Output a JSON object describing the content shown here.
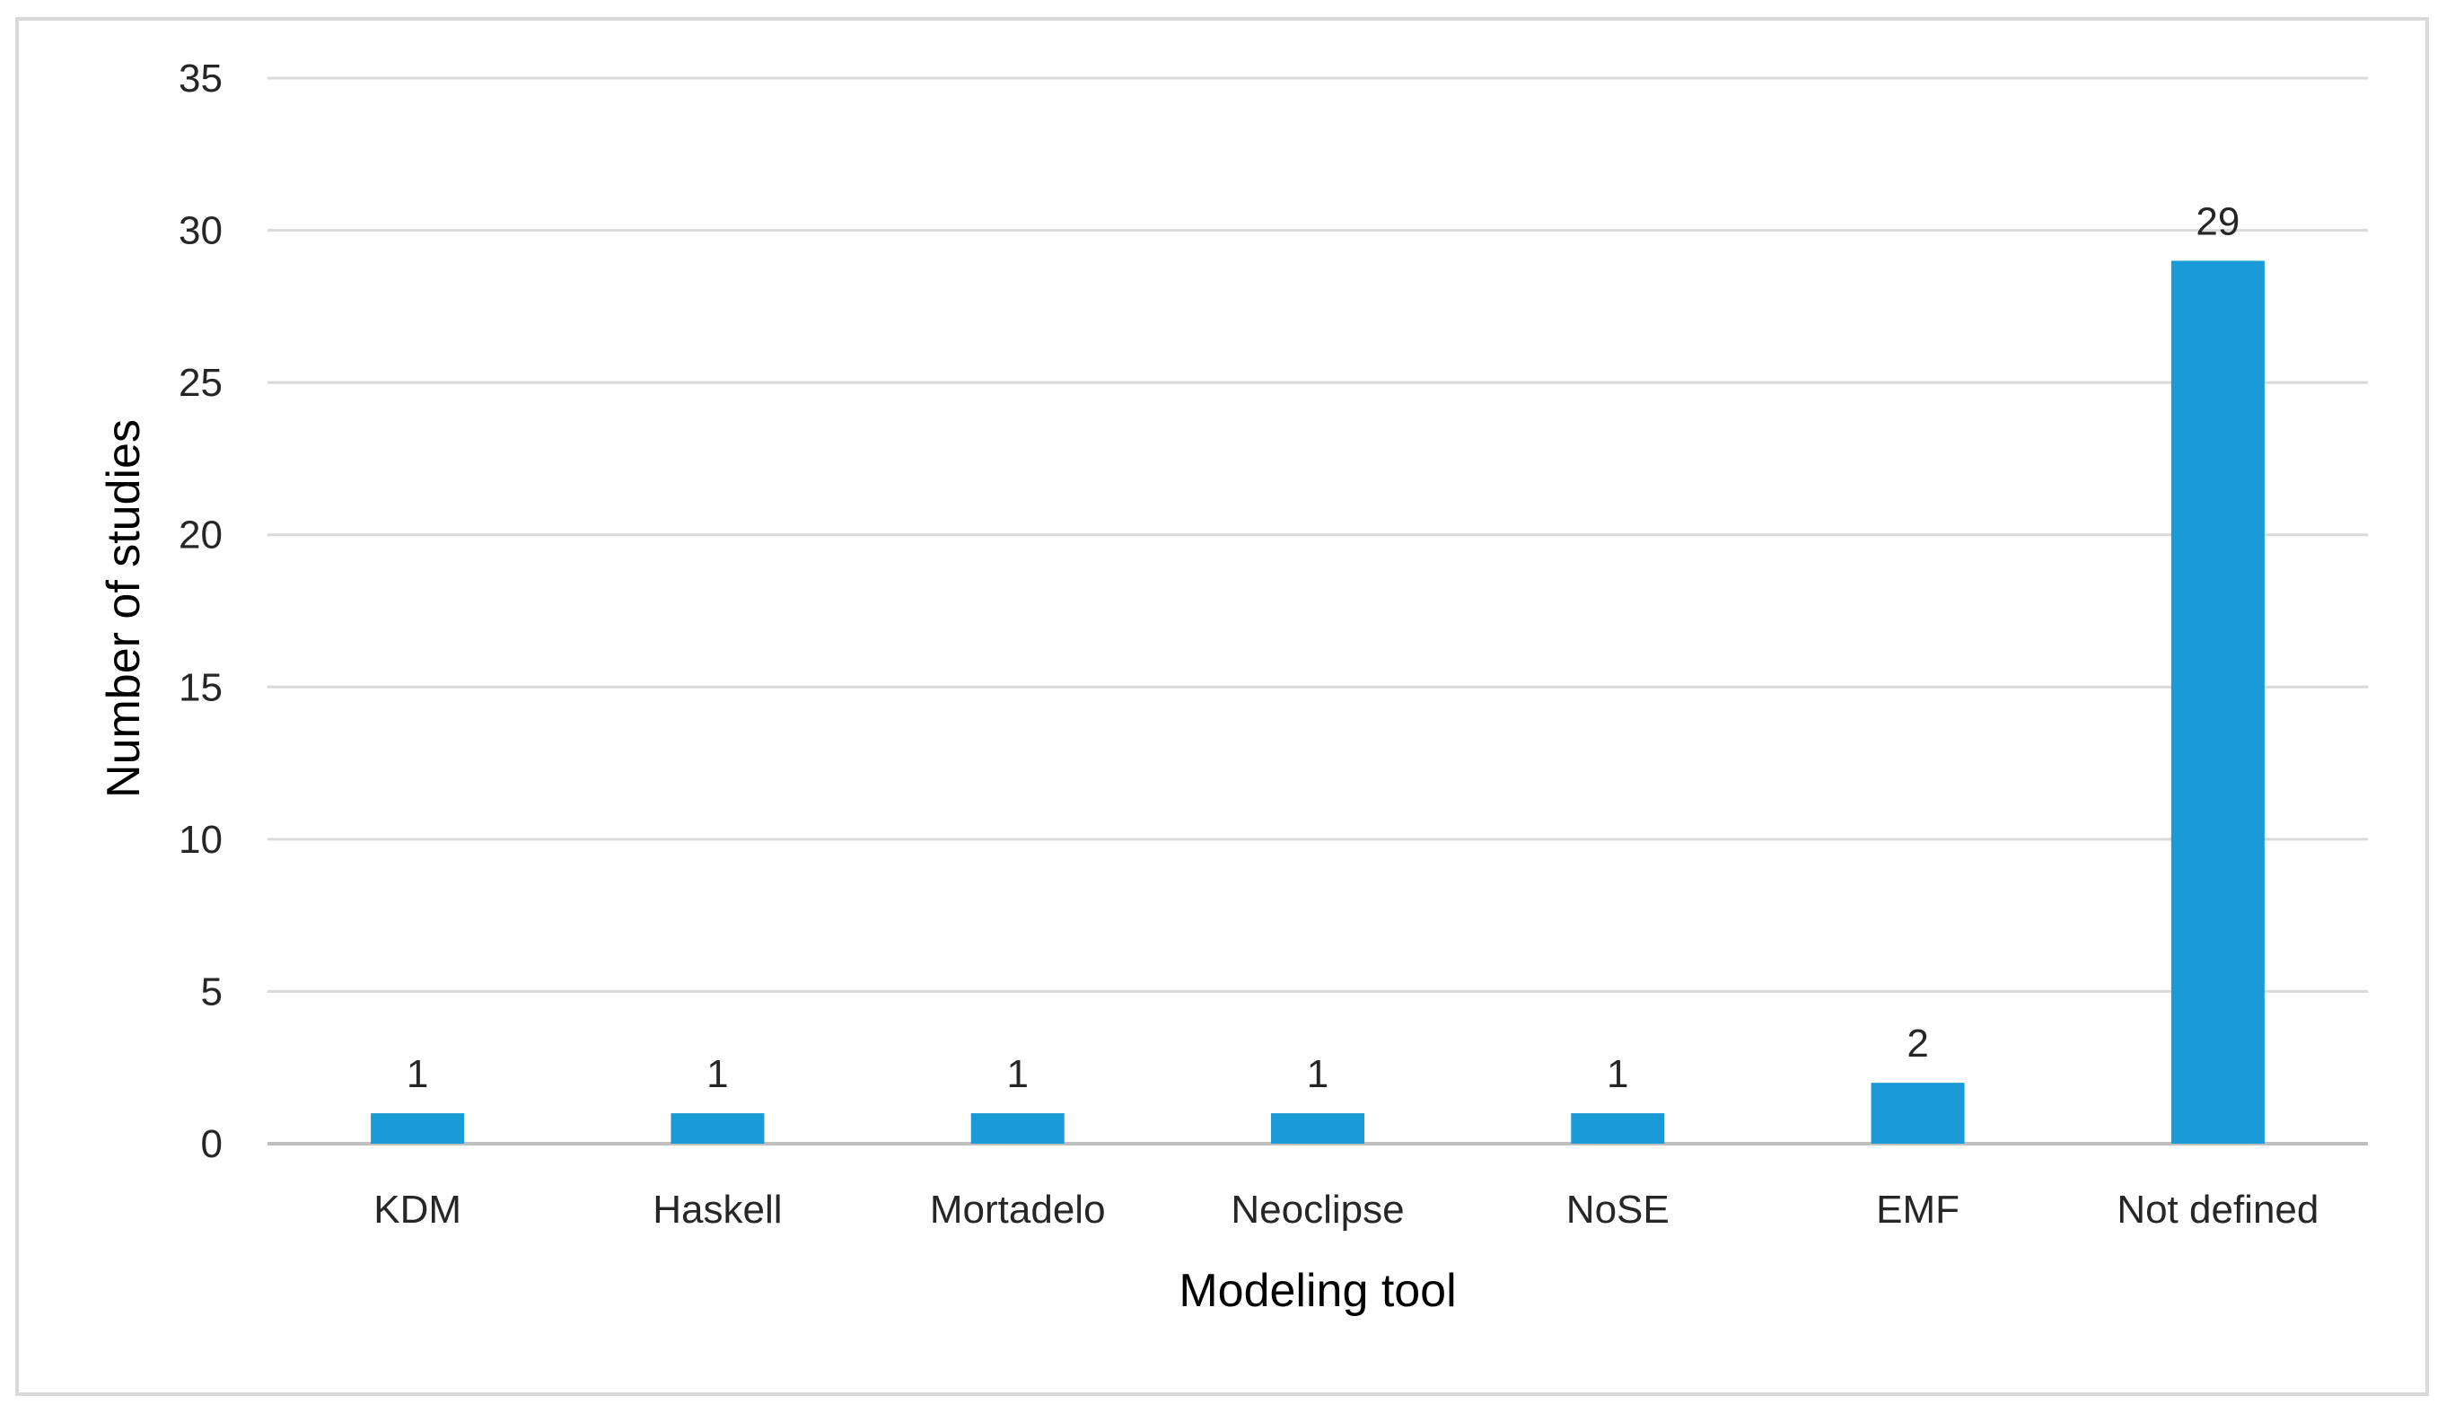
{
  "chart_data": {
    "type": "bar",
    "title": "",
    "xlabel": "Modeling tool",
    "ylabel": "Number of studies",
    "categories": [
      "KDM",
      "Haskell",
      "Mortadelo",
      "Neoclipse",
      "NoSE",
      "EMF",
      "Not defined"
    ],
    "values": [
      1,
      1,
      1,
      1,
      1,
      2,
      29
    ],
    "data_labels": [
      "1",
      "1",
      "1",
      "1",
      "1",
      "2",
      "29"
    ],
    "ylim": [
      0,
      35
    ],
    "yticks": [
      0,
      5,
      10,
      15,
      20,
      25,
      30,
      35
    ],
    "grid": true,
    "legend": "none",
    "colors": {
      "bar": "#1a9ad6",
      "grid": "#d9d9d9",
      "axis": "#bfbfbf",
      "frame": "#d9d9d9"
    }
  }
}
